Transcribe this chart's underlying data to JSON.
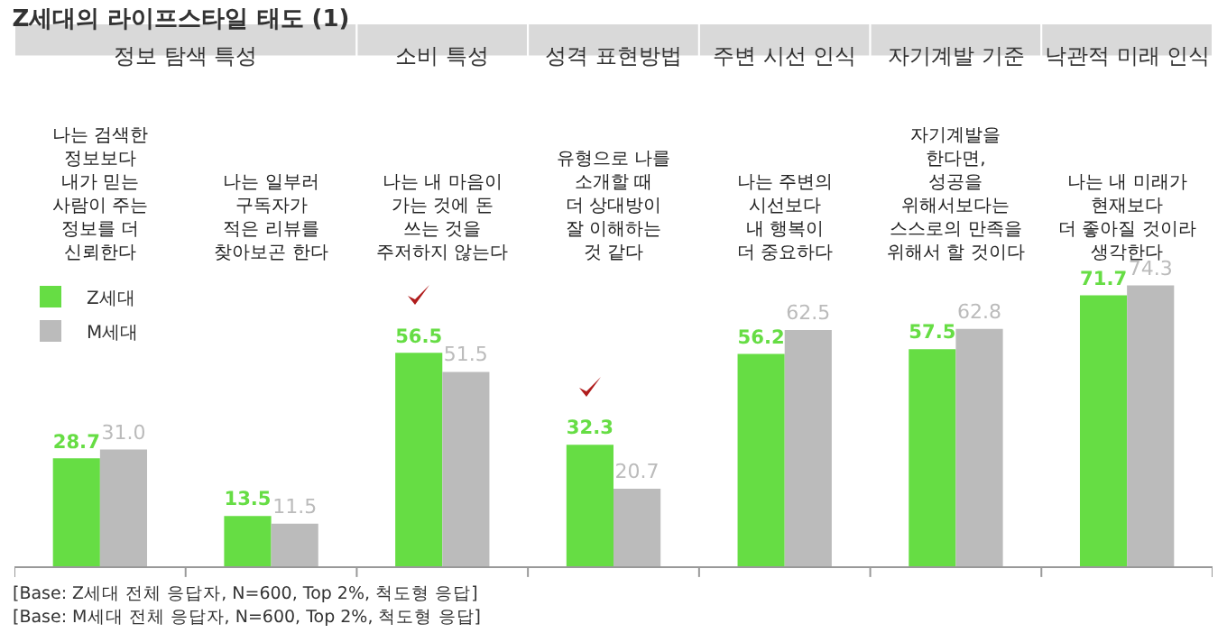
{
  "chart_data": {
    "type": "bar",
    "title": "Z세대의 라이프스타일 태도 (1)",
    "categories": [
      "나는 검색한 정보보다\n내가 믿는 사람이 주는\n정보를 더 신뢰한다",
      "나는 일부러 구독자가\n적은 리뷰를\n찾아보곤 한다",
      "나는 내 마음이\n가는 것에 돈 쓰는 것을\n주저하지 않는다",
      "유형으로 나를\n소개할 때 더 상대방이\n잘 이해하는 것 같다",
      "나는 주변의 시선보다\n내 행복이\n더 중요하다",
      "자기계발을 한다면,\n성공을 위해서보다는\n스스로의 만족을\n위해서 할 것이다",
      "나는 내 미래가\n현재보다\n더 좋아질 것이라\n생각한다"
    ],
    "series": [
      {
        "name": "Z세대",
        "color": "#66dd44",
        "values": [
          28.7,
          13.5,
          56.5,
          32.3,
          56.2,
          57.5,
          71.7
        ],
        "value_labels": [
          "28.7",
          "13.5",
          "56.5",
          "32.3",
          "56.2",
          "57.5",
          "71.7"
        ]
      },
      {
        "name": "M세대",
        "color": "#bbbbbb",
        "values": [
          31.0,
          11.5,
          51.5,
          20.7,
          62.5,
          62.8,
          74.3
        ],
        "value_labels": [
          "31.0",
          "11.5",
          "51.5",
          "20.7",
          "62.5",
          "62.8",
          "74.3"
        ]
      }
    ],
    "legend": "top left",
    "grid": false,
    "tick_labels": "x",
    "annotations": [
      "정보 탐색 특성",
      "소비 특성",
      "성격 표현방법",
      "주변 시선 인식",
      "자기계발 기준",
      "낙관적 미래 인식",
      "[Base: Z세대 전체 응답자, N=600, Top 2%, 척도형 응답]",
      "[Base: M세대 전체 응답자, N=600, Top 2%, 척도형 응답]"
    ]
  }
}
